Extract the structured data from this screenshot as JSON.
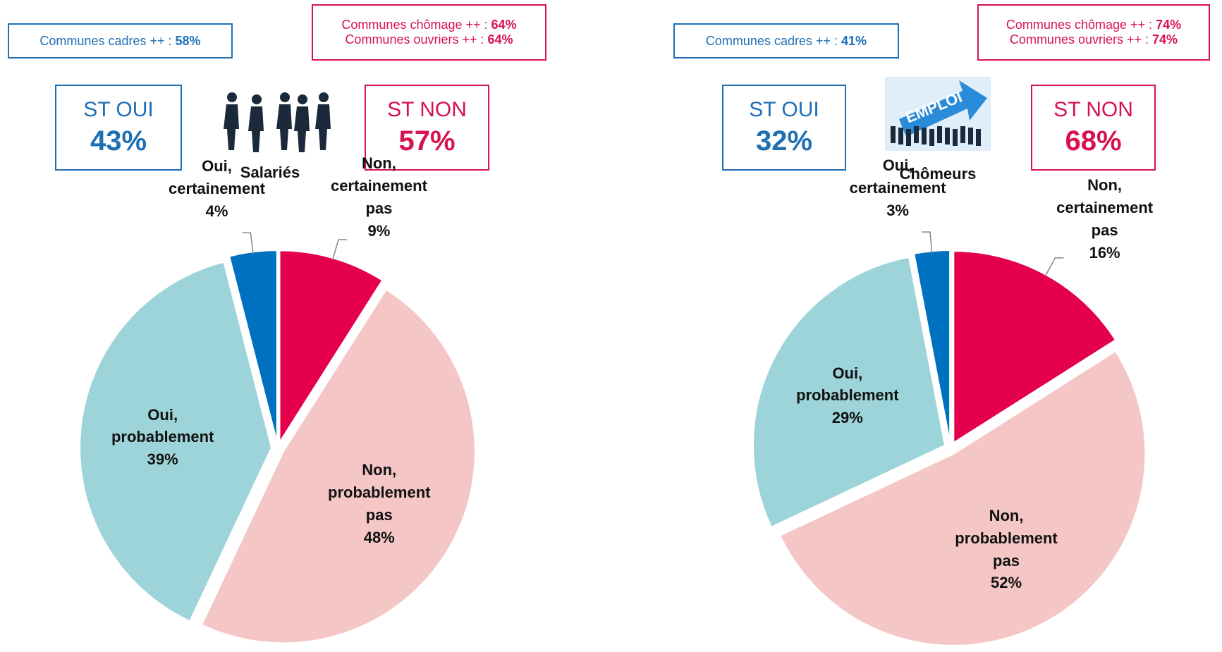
{
  "chart_data": [
    {
      "type": "pie",
      "group": "Salariés",
      "note_cadres": {
        "text": "Communes cadres ++ :",
        "value": "58%"
      },
      "note_red": [
        {
          "text": "Communes chômage ++ :",
          "value": "64%"
        },
        {
          "text": "Communes ouvriers ++ :",
          "value": "64%"
        }
      ],
      "st_oui": {
        "label": "ST OUI",
        "value": "43%"
      },
      "st_non": {
        "label": "ST NON",
        "value": "57%"
      },
      "categories": [
        "Non, certainement pas",
        "Non, probablement pas",
        "Oui, probablement",
        "Oui, certainement"
      ],
      "values": [
        9,
        48,
        39,
        4
      ],
      "value_labels": [
        "9%",
        "48%",
        "39%",
        "4%"
      ],
      "colors": [
        "#e4004b",
        "#f5c6c6",
        "#9dd4d9",
        "#0070c0"
      ]
    },
    {
      "type": "pie",
      "group": "Chômeurs",
      "icon_text": "EMPLOI",
      "note_cadres": {
        "text": "Communes cadres ++ :",
        "value": "41%"
      },
      "note_red": [
        {
          "text": "Communes chômage ++ :",
          "value": "74%"
        },
        {
          "text": "Communes ouvriers ++ :",
          "value": "74%"
        }
      ],
      "st_oui": {
        "label": "ST OUI",
        "value": "32%"
      },
      "st_non": {
        "label": "ST NON",
        "value": "68%"
      },
      "categories": [
        "Non, certainement pas",
        "Non, probablement pas",
        "Oui, probablement",
        "Oui, certainement"
      ],
      "values": [
        16,
        52,
        29,
        3
      ],
      "value_labels": [
        "16%",
        "52%",
        "29%",
        "3%"
      ],
      "colors": [
        "#e4004b",
        "#f5c6c6",
        "#9dd4d9",
        "#0070c0"
      ]
    }
  ]
}
